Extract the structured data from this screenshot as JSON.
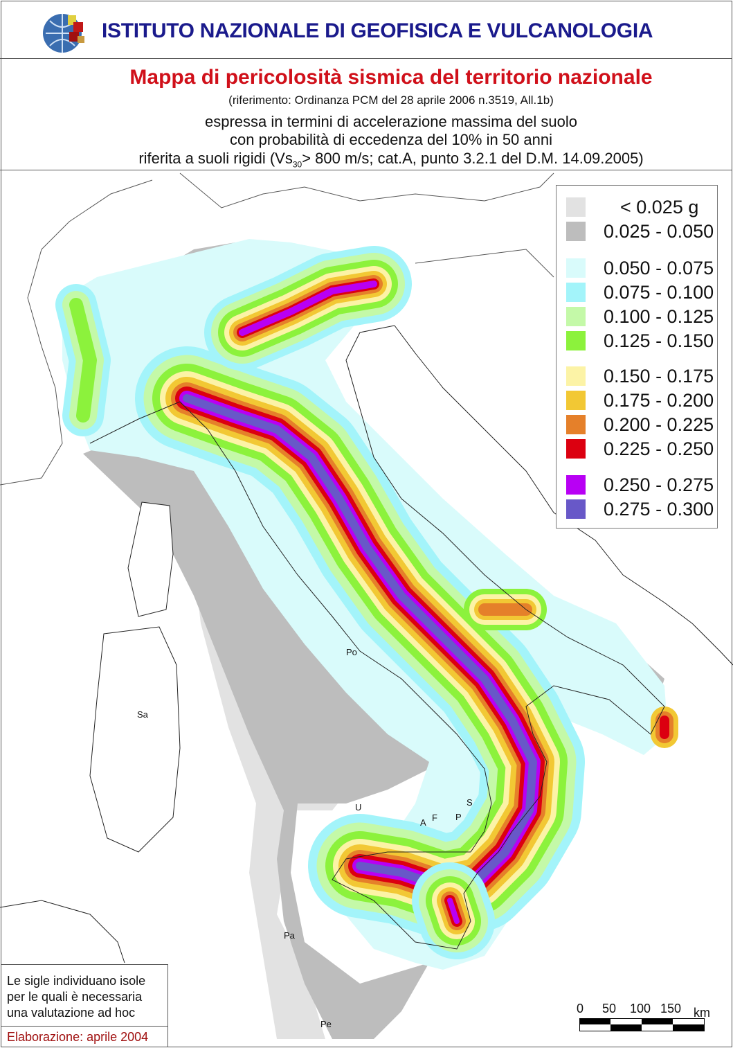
{
  "header": {
    "institute": "ISTITUTO NAZIONALE DI GEOFISICA E VULCANOLOGIA",
    "title": "Mappa di pericolosità sismica del territorio nazionale",
    "reference": "(riferimento: Ordinanza PCM del 28 aprile 2006 n.3519, All.1b)",
    "desc_line1": "espressa in termini di accelerazione massima del suolo",
    "desc_line2": "con probabilità di eccedenza del 10% in 50 anni",
    "desc_line3_a": "riferita a suoli rigidi (Vs",
    "desc_line3_sub": "30",
    "desc_line3_b": "> 800 m/s; cat.A, punto 3.2.1 del D.M. 14.09.2005)"
  },
  "legend": {
    "items": [
      {
        "label": "< 0.025 g",
        "color": "#e2e2e2"
      },
      {
        "label": "0.025 - 0.050",
        "color": "#bdbdbd"
      },
      {
        "label": "0.050 - 0.075",
        "color": "#d9fbfb"
      },
      {
        "label": "0.075 - 0.100",
        "color": "#a3f4fa"
      },
      {
        "label": "0.100 - 0.125",
        "color": "#c4f9a8"
      },
      {
        "label": "0.125 - 0.150",
        "color": "#8cf23c"
      },
      {
        "label": "0.150 - 0.175",
        "color": "#fcf3a6"
      },
      {
        "label": "0.175 - 0.200",
        "color": "#f2c834"
      },
      {
        "label": "0.200 - 0.225",
        "color": "#e5802a"
      },
      {
        "label": "0.225 - 0.250",
        "color": "#dc0010"
      },
      {
        "label": "0.250 - 0.275",
        "color": "#b800f4"
      },
      {
        "label": "0.275 - 0.300",
        "color": "#6858c8"
      }
    ]
  },
  "islands": {
    "sa": "Sa",
    "po": "Po",
    "u": "U",
    "s": "S",
    "a": "A",
    "f": "F",
    "p": "P",
    "pa": "Pa",
    "pe": "Pe"
  },
  "note": {
    "line1": "Le sigle individuano isole",
    "line2": "per le quali è necessaria",
    "line3": "una valutazione ad hoc",
    "elaboration": "Elaborazione: aprile 2004"
  },
  "scale": {
    "ticks": [
      "0",
      "50",
      "100",
      "150"
    ],
    "unit": "km"
  }
}
